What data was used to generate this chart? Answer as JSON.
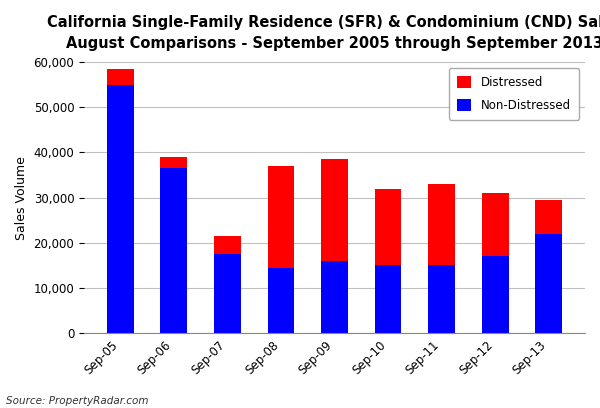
{
  "title_line1": "California Single-Family Residence (SFR) & Condominium (CND) Sales",
  "title_line2": "August Comparisons - September 2005 through September 2013",
  "categories": [
    "Sep-05",
    "Sep-06",
    "Sep-07",
    "Sep-08",
    "Sep-09",
    "Sep-10",
    "Sep-11",
    "Sep-12",
    "Sep-13"
  ],
  "non_distressed": [
    55000,
    36500,
    17500,
    14500,
    16000,
    15000,
    15000,
    17000,
    22000
  ],
  "distressed": [
    3500,
    2500,
    4000,
    22500,
    22500,
    17000,
    18000,
    14000,
    7500
  ],
  "non_distressed_color": "#0000ff",
  "distressed_color": "#ff0000",
  "ylabel": "Sales Volume",
  "ylim": [
    0,
    60000
  ],
  "yticks": [
    0,
    10000,
    20000,
    30000,
    40000,
    50000,
    60000
  ],
  "source_text": "Source: PropertyRadar.com",
  "legend_labels_order": [
    "Distressed",
    "Non-Distressed"
  ],
  "background_color": "#ffffff",
  "grid_color": "#c0c0c0",
  "title_fontsize": 10.5,
  "axis_fontsize": 9,
  "tick_fontsize": 8.5,
  "bar_width": 0.5
}
